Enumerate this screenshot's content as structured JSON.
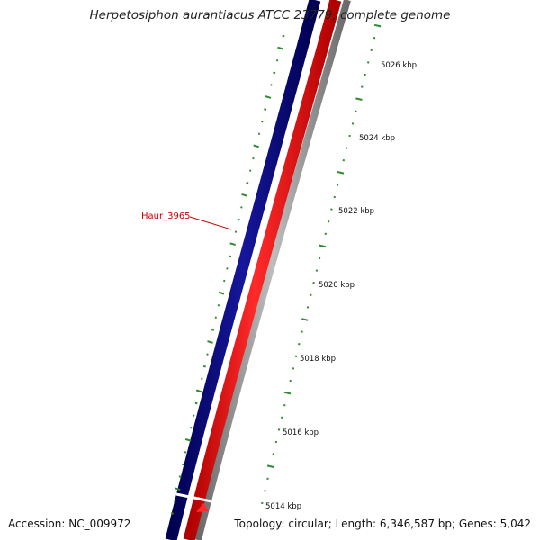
{
  "title": "Herpetosiphon aurantiacus ATCC 23779, complete genome",
  "footer": {
    "accession": "Accession: NC_009972",
    "summary": "Topology: circular; Length: 6,346,587 bp; Genes: 5,042"
  },
  "colors": {
    "forward_strand": "#0a0a82",
    "reverse_strand": "#ff0000",
    "backbone": "#8c8c8c",
    "feature_ticks": "#2e8b2e",
    "highlight_label": "#cc0000"
  },
  "highlighted_gene": {
    "label": "Haur_3965"
  },
  "scale_ticks": [
    {
      "label": "5014 kbp"
    },
    {
      "label": "5016 kbp"
    },
    {
      "label": "5018 kbp"
    },
    {
      "label": "5020 kbp"
    },
    {
      "label": "5022 kbp"
    },
    {
      "label": "5024 kbp"
    },
    {
      "label": "5026 kbp"
    }
  ]
}
